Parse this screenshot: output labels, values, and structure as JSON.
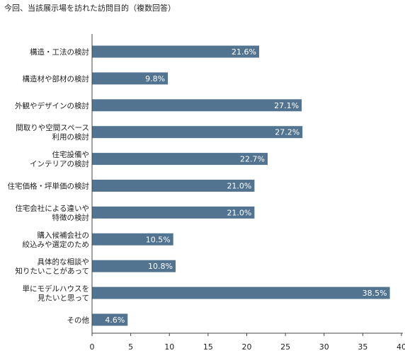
{
  "chart_data": {
    "type": "bar",
    "orientation": "horizontal",
    "title": "今回、当該展示場を訪れた訪問目的（複数回答）",
    "categories": [
      [
        "構造・工法の検討"
      ],
      [
        "構造材や部材の検討"
      ],
      [
        "外観やデザインの検討"
      ],
      [
        "間取りや空間スペース",
        "利用の検討"
      ],
      [
        "住宅設備や",
        "インテリアの検討"
      ],
      [
        "住宅価格・坪単価の検討"
      ],
      [
        "住宅会社による違いや",
        "特徴の検討"
      ],
      [
        "購入候補会社の",
        "絞込みや選定のため"
      ],
      [
        "具体的な相談や",
        "知りたいことがあって"
      ],
      [
        "単にモデルハウスを",
        "見たいと思って"
      ],
      [
        "その他"
      ]
    ],
    "values": [
      21.6,
      9.8,
      27.1,
      27.2,
      22.7,
      21.0,
      21.0,
      10.5,
      10.8,
      38.5,
      4.6
    ],
    "value_labels": [
      "21.6%",
      "9.8%",
      "27.1%",
      "27.2%",
      "22.7%",
      "21.0%",
      "21.0%",
      "10.5%",
      "10.8%",
      "38.5%",
      "4.6%"
    ],
    "xlim": [
      0,
      40
    ],
    "xticks": [
      0,
      5,
      10,
      15,
      20,
      25,
      30,
      35,
      40
    ],
    "bar_color": "#527491",
    "grid": false
  }
}
